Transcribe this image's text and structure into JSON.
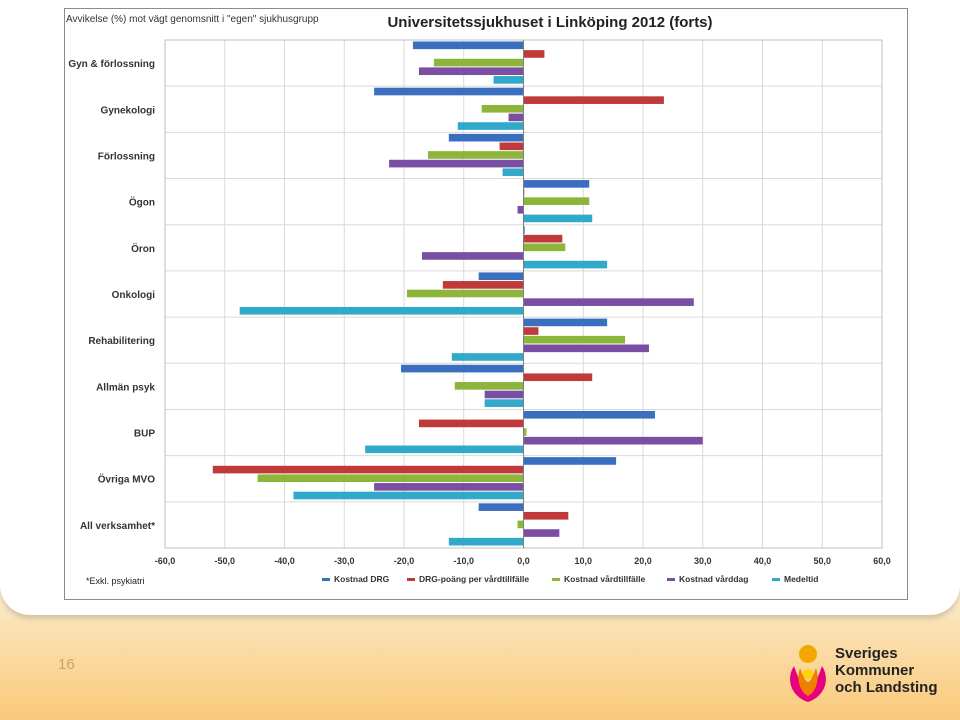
{
  "slide": {
    "page_number": "16",
    "logo": {
      "line1": "Sveriges",
      "line2": "Kommuner",
      "line3": "och Landsting"
    }
  },
  "chart_data": {
    "type": "bar",
    "orientation": "horizontal",
    "title": "Universitetssjukhuset i Linköping 2012 (forts)",
    "subtitle": "Avvikelse (%) mot vägt genomsnitt i \"egen\" sjukhusgrupp",
    "footnote": "*Exkl. psykiatri",
    "categories": [
      "Gyn & förlossning",
      "Gynekologi",
      "Förlossning",
      "Ögon",
      "Öron",
      "Onkologi",
      "Rehabilitering",
      "Allmän psyk",
      "BUP",
      "Övriga MVO",
      "All verksamhet*"
    ],
    "xlim": [
      -60,
      60
    ],
    "xticks": [
      "-60,0",
      "-50,0",
      "-40,0",
      "-30,0",
      "-20,0",
      "-10,0",
      "0,0",
      "10,0",
      "20,0",
      "30,0",
      "40,0",
      "50,0",
      "60,0"
    ],
    "grid": true,
    "legend_position": "bottom",
    "series": [
      {
        "name": "Kostnad DRG",
        "color": "#3a6fbf",
        "values": [
          -18.5,
          -25,
          -12.5,
          11,
          0.2,
          -7.5,
          14,
          -20.5,
          22,
          15.5,
          -7.5
        ]
      },
      {
        "name": "DRG-poäng per vårdtillfälle",
        "color": "#c0393b",
        "values": [
          3.5,
          23.5,
          -4,
          0,
          6.5,
          -13.5,
          2.5,
          11.5,
          -17.5,
          -52,
          7.5
        ]
      },
      {
        "name": "Kostnad vårdtillfälle",
        "color": "#8db53c",
        "values": [
          -15,
          -7,
          -16,
          11,
          7,
          -19.5,
          17,
          -11.5,
          0.5,
          -44.5,
          -1
        ]
      },
      {
        "name": "Kostnad vårddag",
        "color": "#7a4fa3",
        "values": [
          -17.5,
          -2.5,
          -22.5,
          -1,
          -17,
          28.5,
          21,
          -6.5,
          30,
          -25,
          6
        ]
      },
      {
        "name": "Medeltid",
        "color": "#33a9c9",
        "values": [
          -5,
          -11,
          -3.5,
          11.5,
          14,
          -47.5,
          -12,
          -6.5,
          -26.5,
          -38.5,
          -12.5
        ]
      }
    ]
  }
}
